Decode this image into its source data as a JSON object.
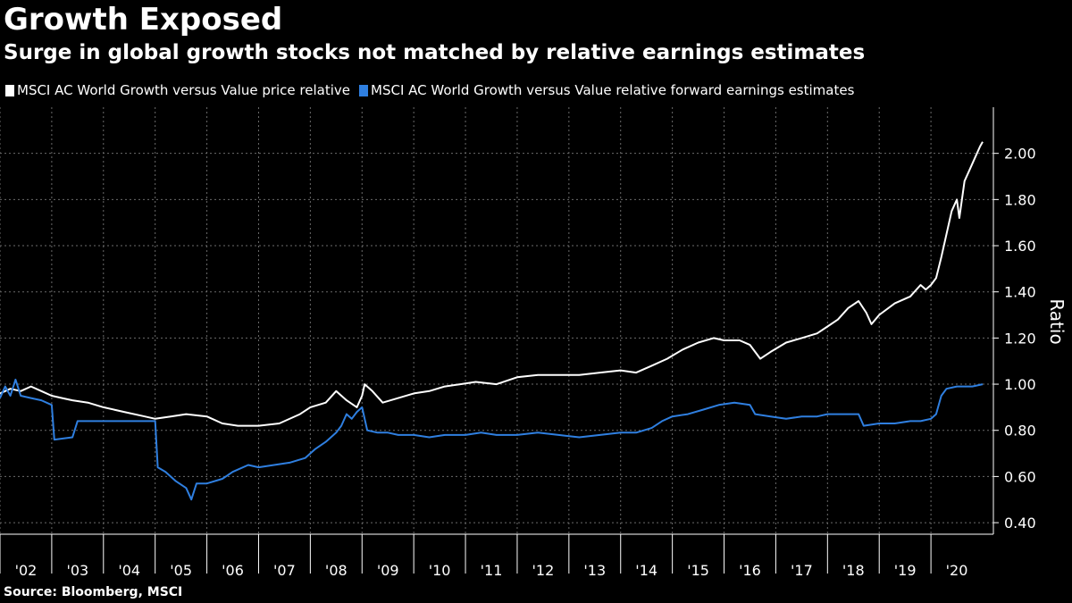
{
  "header": {
    "title": "Growth Exposed",
    "subtitle": "Surge in global growth stocks not matched by relative earnings estimates"
  },
  "footer": {
    "source": "Source: Bloomberg, MSCI"
  },
  "colors": {
    "background": "#000000",
    "series_price": "#ffffff",
    "series_earnings": "#2f7fe0",
    "grid": "#6b6b6b"
  },
  "chart_data": {
    "type": "line",
    "title": "Growth Exposed",
    "subtitle": "Surge in global growth stocks not matched by relative earnings estimates",
    "xlabel": "",
    "ylabel": "Ratio",
    "ylim": [
      0.35,
      2.2
    ],
    "xlim": [
      2002.0,
      2021.0
    ],
    "yticks": [
      0.4,
      0.6,
      0.8,
      1.0,
      1.2,
      1.4,
      1.6,
      1.8,
      2.0
    ],
    "ytick_labels": [
      "0.40",
      "0.60",
      "0.80",
      "1.00",
      "1.20",
      "1.40",
      "1.60",
      "1.80",
      "2.00"
    ],
    "xtick_labels": [
      "'02",
      "'03",
      "'04",
      "'05",
      "'06",
      "'07",
      "'08",
      "'09",
      "'10",
      "'11",
      "'12",
      "'13",
      "'14",
      "'15",
      "'16",
      "'17",
      "'18",
      "'19",
      "'20"
    ],
    "xtick_years": [
      2002,
      2003,
      2004,
      2005,
      2006,
      2007,
      2008,
      2009,
      2010,
      2011,
      2012,
      2013,
      2014,
      2015,
      2016,
      2017,
      2018,
      2019,
      2020
    ],
    "grid": true,
    "series": [
      {
        "name": "MSCI AC World Growth versus Value price relative",
        "color": "#ffffff",
        "points": [
          [
            2002.0,
            0.96
          ],
          [
            2002.2,
            0.98
          ],
          [
            2002.4,
            0.97
          ],
          [
            2002.6,
            0.99
          ],
          [
            2002.8,
            0.97
          ],
          [
            2003.0,
            0.95
          ],
          [
            2003.2,
            0.94
          ],
          [
            2003.4,
            0.93
          ],
          [
            2003.7,
            0.92
          ],
          [
            2004.0,
            0.9
          ],
          [
            2004.4,
            0.88
          ],
          [
            2004.8,
            0.86
          ],
          [
            2005.0,
            0.85
          ],
          [
            2005.3,
            0.86
          ],
          [
            2005.6,
            0.87
          ],
          [
            2006.0,
            0.86
          ],
          [
            2006.3,
            0.83
          ],
          [
            2006.6,
            0.82
          ],
          [
            2007.0,
            0.82
          ],
          [
            2007.4,
            0.83
          ],
          [
            2007.8,
            0.87
          ],
          [
            2008.0,
            0.9
          ],
          [
            2008.3,
            0.92
          ],
          [
            2008.5,
            0.97
          ],
          [
            2008.7,
            0.93
          ],
          [
            2008.9,
            0.9
          ],
          [
            2009.0,
            0.95
          ],
          [
            2009.05,
            1.0
          ],
          [
            2009.2,
            0.97
          ],
          [
            2009.4,
            0.92
          ],
          [
            2009.7,
            0.94
          ],
          [
            2010.0,
            0.96
          ],
          [
            2010.3,
            0.97
          ],
          [
            2010.6,
            0.99
          ],
          [
            2010.9,
            1.0
          ],
          [
            2011.2,
            1.01
          ],
          [
            2011.6,
            1.0
          ],
          [
            2012.0,
            1.03
          ],
          [
            2012.4,
            1.04
          ],
          [
            2012.8,
            1.04
          ],
          [
            2013.2,
            1.04
          ],
          [
            2013.6,
            1.05
          ],
          [
            2014.0,
            1.06
          ],
          [
            2014.3,
            1.05
          ],
          [
            2014.6,
            1.08
          ],
          [
            2014.9,
            1.11
          ],
          [
            2015.2,
            1.15
          ],
          [
            2015.5,
            1.18
          ],
          [
            2015.8,
            1.2
          ],
          [
            2016.0,
            1.19
          ],
          [
            2016.3,
            1.19
          ],
          [
            2016.5,
            1.17
          ],
          [
            2016.7,
            1.11
          ],
          [
            2016.9,
            1.14
          ],
          [
            2017.2,
            1.18
          ],
          [
            2017.5,
            1.2
          ],
          [
            2017.8,
            1.22
          ],
          [
            2018.0,
            1.25
          ],
          [
            2018.2,
            1.28
          ],
          [
            2018.4,
            1.33
          ],
          [
            2018.6,
            1.36
          ],
          [
            2018.75,
            1.31
          ],
          [
            2018.85,
            1.26
          ],
          [
            2019.0,
            1.3
          ],
          [
            2019.3,
            1.35
          ],
          [
            2019.6,
            1.38
          ],
          [
            2019.8,
            1.43
          ],
          [
            2019.9,
            1.41
          ],
          [
            2020.0,
            1.43
          ],
          [
            2020.1,
            1.46
          ],
          [
            2020.2,
            1.55
          ],
          [
            2020.3,
            1.65
          ],
          [
            2020.4,
            1.75
          ],
          [
            2020.5,
            1.8
          ],
          [
            2020.55,
            1.72
          ],
          [
            2020.65,
            1.88
          ],
          [
            2020.75,
            1.93
          ],
          [
            2020.85,
            1.98
          ],
          [
            2020.95,
            2.03
          ],
          [
            2021.0,
            2.05
          ]
        ]
      },
      {
        "name": "MSCI AC World Growth versus Value relative forward earnings estimates",
        "color": "#2f7fe0",
        "points": [
          [
            2002.0,
            0.94
          ],
          [
            2002.1,
            0.99
          ],
          [
            2002.2,
            0.95
          ],
          [
            2002.3,
            1.02
          ],
          [
            2002.4,
            0.95
          ],
          [
            2002.6,
            0.94
          ],
          [
            2002.8,
            0.93
          ],
          [
            2003.0,
            0.91
          ],
          [
            2003.05,
            0.76
          ],
          [
            2003.4,
            0.77
          ],
          [
            2003.5,
            0.84
          ],
          [
            2004.0,
            0.84
          ],
          [
            2004.8,
            0.84
          ],
          [
            2005.0,
            0.84
          ],
          [
            2005.05,
            0.64
          ],
          [
            2005.2,
            0.62
          ],
          [
            2005.4,
            0.58
          ],
          [
            2005.6,
            0.55
          ],
          [
            2005.7,
            0.5
          ],
          [
            2005.8,
            0.57
          ],
          [
            2006.0,
            0.57
          ],
          [
            2006.3,
            0.59
          ],
          [
            2006.5,
            0.62
          ],
          [
            2006.8,
            0.65
          ],
          [
            2007.0,
            0.64
          ],
          [
            2007.3,
            0.65
          ],
          [
            2007.6,
            0.66
          ],
          [
            2007.9,
            0.68
          ],
          [
            2008.1,
            0.72
          ],
          [
            2008.3,
            0.75
          ],
          [
            2008.5,
            0.79
          ],
          [
            2008.6,
            0.82
          ],
          [
            2008.7,
            0.87
          ],
          [
            2008.8,
            0.85
          ],
          [
            2008.9,
            0.88
          ],
          [
            2009.0,
            0.9
          ],
          [
            2009.1,
            0.8
          ],
          [
            2009.3,
            0.79
          ],
          [
            2009.5,
            0.79
          ],
          [
            2009.7,
            0.78
          ],
          [
            2009.8,
            0.78
          ],
          [
            2010.0,
            0.78
          ],
          [
            2010.3,
            0.77
          ],
          [
            2010.6,
            0.78
          ],
          [
            2011.0,
            0.78
          ],
          [
            2011.3,
            0.79
          ],
          [
            2011.6,
            0.78
          ],
          [
            2012.0,
            0.78
          ],
          [
            2012.4,
            0.79
          ],
          [
            2012.8,
            0.78
          ],
          [
            2013.2,
            0.77
          ],
          [
            2013.6,
            0.78
          ],
          [
            2014.0,
            0.79
          ],
          [
            2014.3,
            0.79
          ],
          [
            2014.6,
            0.81
          ],
          [
            2014.8,
            0.84
          ],
          [
            2015.0,
            0.86
          ],
          [
            2015.3,
            0.87
          ],
          [
            2015.6,
            0.89
          ],
          [
            2015.9,
            0.91
          ],
          [
            2016.2,
            0.92
          ],
          [
            2016.5,
            0.91
          ],
          [
            2016.6,
            0.87
          ],
          [
            2016.9,
            0.86
          ],
          [
            2017.2,
            0.85
          ],
          [
            2017.5,
            0.86
          ],
          [
            2017.8,
            0.86
          ],
          [
            2018.0,
            0.87
          ],
          [
            2018.3,
            0.87
          ],
          [
            2018.6,
            0.87
          ],
          [
            2018.7,
            0.82
          ],
          [
            2019.0,
            0.83
          ],
          [
            2019.3,
            0.83
          ],
          [
            2019.6,
            0.84
          ],
          [
            2019.8,
            0.84
          ],
          [
            2020.0,
            0.85
          ],
          [
            2020.1,
            0.87
          ],
          [
            2020.2,
            0.95
          ],
          [
            2020.3,
            0.98
          ],
          [
            2020.5,
            0.99
          ],
          [
            2020.8,
            0.99
          ],
          [
            2021.0,
            1.0
          ]
        ]
      }
    ],
    "legend_position": "top-left"
  }
}
